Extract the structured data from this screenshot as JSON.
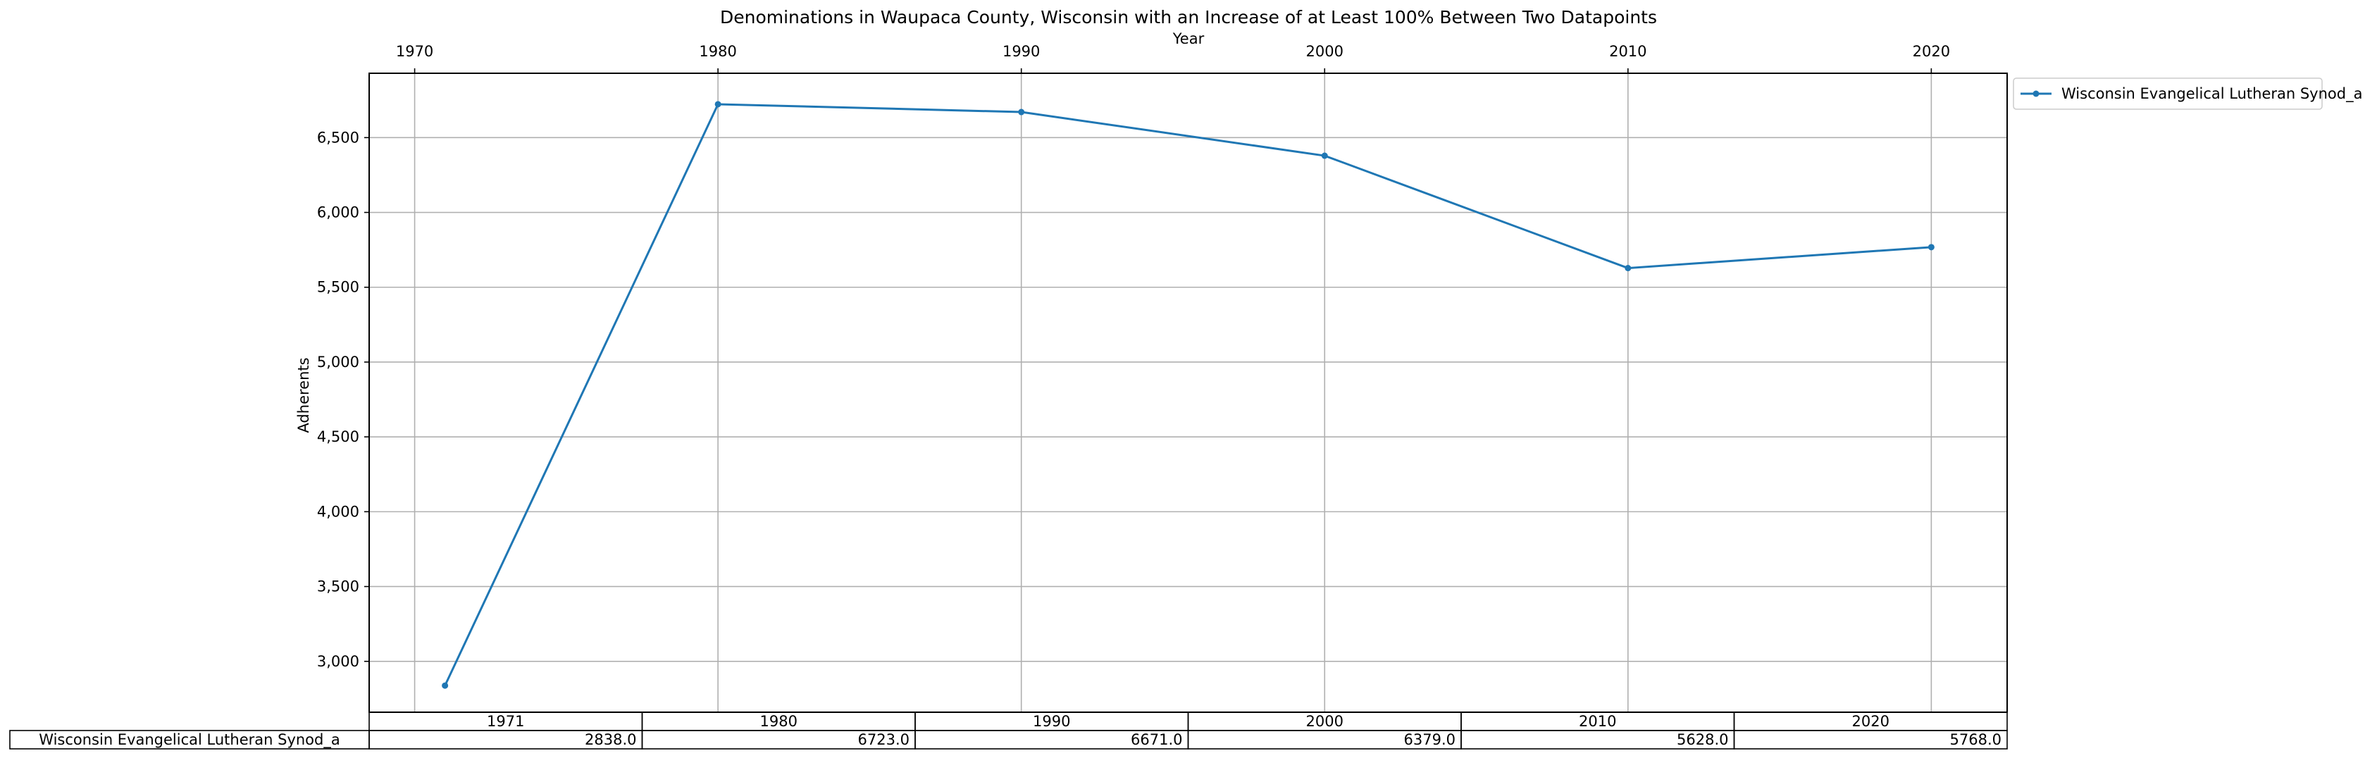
{
  "chart_data": {
    "type": "line",
    "title": "Denominations in Waupaca County, Wisconsin with an Increase of at Least 100% Between Two Datapoints",
    "xlabel": "Year",
    "ylabel": "Adherents",
    "xlim": [
      1968.5,
      2022.5
    ],
    "ylim": [
      2660,
      6930
    ],
    "xticks": [
      1970,
      1980,
      1990,
      2000,
      2010,
      2020
    ],
    "yticks": [
      3000,
      3500,
      4000,
      4500,
      5000,
      5500,
      6000,
      6500
    ],
    "ytick_labels": [
      "3,000",
      "3,500",
      "4,000",
      "4,500",
      "5,000",
      "5,500",
      "6,000",
      "6,500"
    ],
    "grid": true,
    "legend_position": "upper right outside",
    "x": [
      1971,
      1980,
      1990,
      2000,
      2010,
      2020
    ],
    "series": [
      {
        "name": "Wisconsin Evangelical Lutheran Synod_a",
        "color": "#1f77b4",
        "values": [
          2838,
          6723,
          6671,
          6379,
          5628,
          5768
        ]
      }
    ],
    "table": {
      "columns": [
        "1971",
        "1980",
        "1990",
        "2000",
        "2010",
        "2020"
      ],
      "rows": [
        {
          "label": "Wisconsin Evangelical Lutheran Synod_a",
          "cells": [
            "2838.0",
            "6723.0",
            "6671.0",
            "6379.0",
            "5628.0",
            "5768.0"
          ]
        }
      ]
    }
  }
}
